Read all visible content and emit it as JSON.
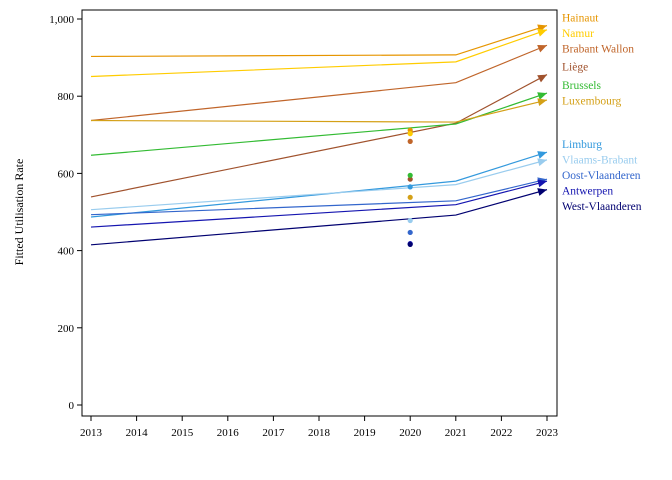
{
  "chart_data": {
    "type": "line",
    "title": "",
    "xlabel": "",
    "ylabel": "Fitted Utilisation Rate",
    "xlim": [
      2013,
      2023
    ],
    "ylim": [
      0,
      1000
    ],
    "xticks": [
      2013,
      2014,
      2015,
      2016,
      2017,
      2018,
      2019,
      2020,
      2021,
      2022,
      2023
    ],
    "yticks": [
      0,
      200,
      400,
      600,
      800,
      1000
    ],
    "ytick_labels": [
      "0",
      "200",
      "400",
      "600",
      "800",
      "1,000"
    ],
    "grid": false,
    "legend": "right",
    "series": [
      {
        "name": "Hainaut",
        "color": "#e69500",
        "x": [
          2013,
          2021,
          2023
        ],
        "y": [
          903,
          907,
          983
        ],
        "point_2020": 712
      },
      {
        "name": "Namur",
        "color": "#ffcc00",
        "x": [
          2013,
          2021,
          2023
        ],
        "y": [
          851,
          889,
          972
        ],
        "point_2020": 703
      },
      {
        "name": "Brabant Wallon",
        "color": "#c0652a",
        "x": [
          2013,
          2021,
          2023
        ],
        "y": [
          737,
          835,
          932
        ],
        "point_2020": 683
      },
      {
        "name": "Liège",
        "color": "#a0522d",
        "x": [
          2013,
          2021,
          2023
        ],
        "y": [
          539,
          730,
          856
        ],
        "point_2020": 585
      },
      {
        "name": "Brussels",
        "color": "#33bb33",
        "x": [
          2013,
          2021,
          2023
        ],
        "y": [
          647,
          728,
          808
        ],
        "point_2020": 595
      },
      {
        "name": "Luxembourg",
        "color": "#d4a017",
        "x": [
          2013,
          2021,
          2023
        ],
        "y": [
          737,
          733,
          790
        ],
        "point_2020": 538
      },
      {
        "name": "Limburg",
        "color": "#3399dd",
        "x": [
          2013,
          2021,
          2023
        ],
        "y": [
          487,
          580,
          655
        ],
        "point_2020": 565
      },
      {
        "name": "Vlaams-Brabant",
        "color": "#99ccee",
        "x": [
          2013,
          2021,
          2023
        ],
        "y": [
          506,
          571,
          635
        ],
        "point_2020": 478
      },
      {
        "name": "Oost-Vlaanderen",
        "color": "#3366cc",
        "x": [
          2013,
          2021,
          2023
        ],
        "y": [
          493,
          529,
          585
        ],
        "point_2020": 447
      },
      {
        "name": "Antwerpen",
        "color": "#1515b0",
        "x": [
          2013,
          2021,
          2023
        ],
        "y": [
          461,
          519,
          580
        ],
        "point_2020": 418
      },
      {
        "name": "West-Vlaanderen",
        "color": "#000070",
        "x": [
          2013,
          2021,
          2023
        ],
        "y": [
          415,
          492,
          558
        ],
        "point_2020": 416
      }
    ]
  }
}
